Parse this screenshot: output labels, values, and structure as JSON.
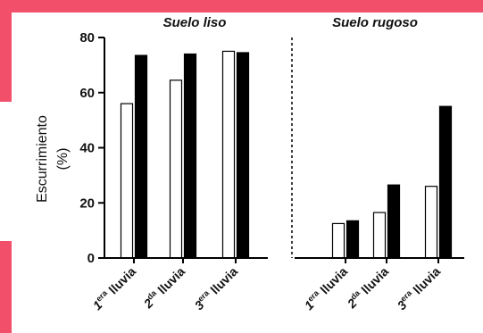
{
  "colors": {
    "accent": "#f2506a",
    "bar_white": "#ffffff",
    "bar_black": "#000000",
    "axis": "#000000",
    "background": "#ffffff"
  },
  "chart_data": {
    "type": "bar",
    "title": "",
    "xlabel": "",
    "ylabel_line1": "Escurrimiento",
    "ylabel_line2": "(%)",
    "ylim": [
      0,
      80
    ],
    "yticks": [
      0,
      20,
      40,
      60,
      80
    ],
    "grid": false,
    "legend": "none",
    "groups": [
      {
        "title": "Suelo liso",
        "categories": [
          {
            "ord": "1",
            "sup": "era",
            "word": "lluvia"
          },
          {
            "ord": "2",
            "sup": "da",
            "word": "lluvia"
          },
          {
            "ord": "3",
            "sup": "era",
            "word": "lluvia"
          }
        ],
        "series": [
          {
            "values": [
              56,
              64.5,
              75
            ]
          },
          {
            "values": [
              73.5,
              74,
              74.5
            ]
          }
        ]
      },
      {
        "title": "Suelo rugoso",
        "categories": [
          {
            "ord": "1",
            "sup": "era",
            "word": "lluvia"
          },
          {
            "ord": "2",
            "sup": "da",
            "word": "lluvia"
          },
          {
            "ord": "3",
            "sup": "era",
            "word": "lluvia"
          }
        ],
        "series": [
          {
            "values": [
              12.5,
              16.5,
              26
            ]
          },
          {
            "values": [
              13.5,
              26.5,
              55
            ]
          }
        ]
      }
    ]
  }
}
